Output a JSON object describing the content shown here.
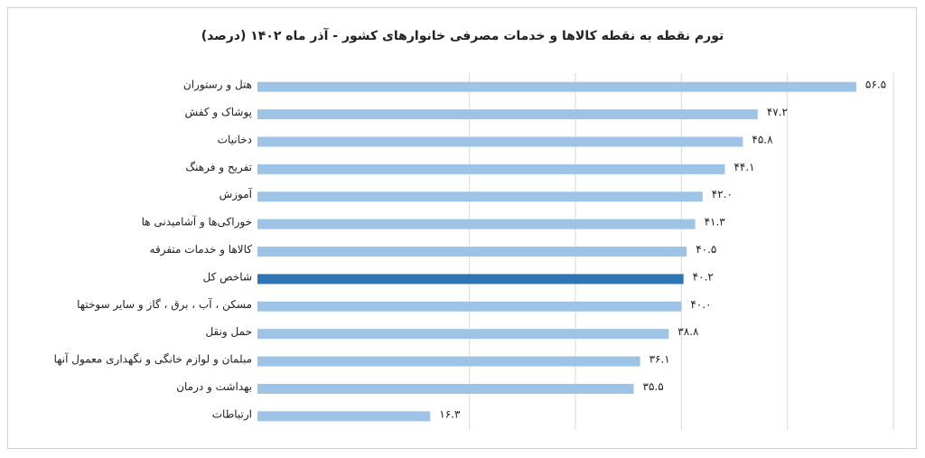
{
  "chart_data": {
    "type": "barh",
    "title": "تورم نقطه به نقطه کالاها و خدمات مصرفی خانوارهای کشور - آذر ماه ۱۴۰۲ (درصد)",
    "categories": [
      "هتل و رستوران",
      "پوشاک و کفش",
      "دخانیات",
      "تفریح و فرهنگ",
      "آموزش",
      "خوراکی‌ها و آشامیدنی ها",
      "کالاها و خدمات متفرقه",
      "شاخص کل",
      "مسکن ، آب ، برق ، گاز و سایر سوختها",
      "حمل ونقل",
      "مبلمان و لوازم خانگی و نگهداری معمول آنها",
      "بهداشت و درمان",
      "ارتباطات"
    ],
    "values": [
      56.5,
      47.2,
      45.8,
      44.1,
      42.0,
      41.3,
      40.5,
      40.2,
      40.0,
      38.8,
      36.1,
      35.5,
      16.3
    ],
    "value_labels": [
      "۵۶.۵",
      "۴۷.۲",
      "۴۵.۸",
      "۴۴.۱",
      "۴۲.۰",
      "۴۱.۳",
      "۴۰.۵",
      "۴۰.۲",
      "۴۰.۰",
      "۳۸.۸",
      "۳۶.۱",
      "۳۵.۵",
      "۱۶.۳"
    ],
    "colors": [
      "#9dc3e6",
      "#9dc3e6",
      "#9dc3e6",
      "#9dc3e6",
      "#9dc3e6",
      "#9dc3e6",
      "#9dc3e6",
      "#2e75b6",
      "#9dc3e6",
      "#9dc3e6",
      "#9dc3e6",
      "#9dc3e6",
      "#9dc3e6"
    ],
    "xlim": [
      0,
      60
    ],
    "xticks": [
      20,
      30,
      40,
      50,
      60
    ],
    "grid": true
  }
}
